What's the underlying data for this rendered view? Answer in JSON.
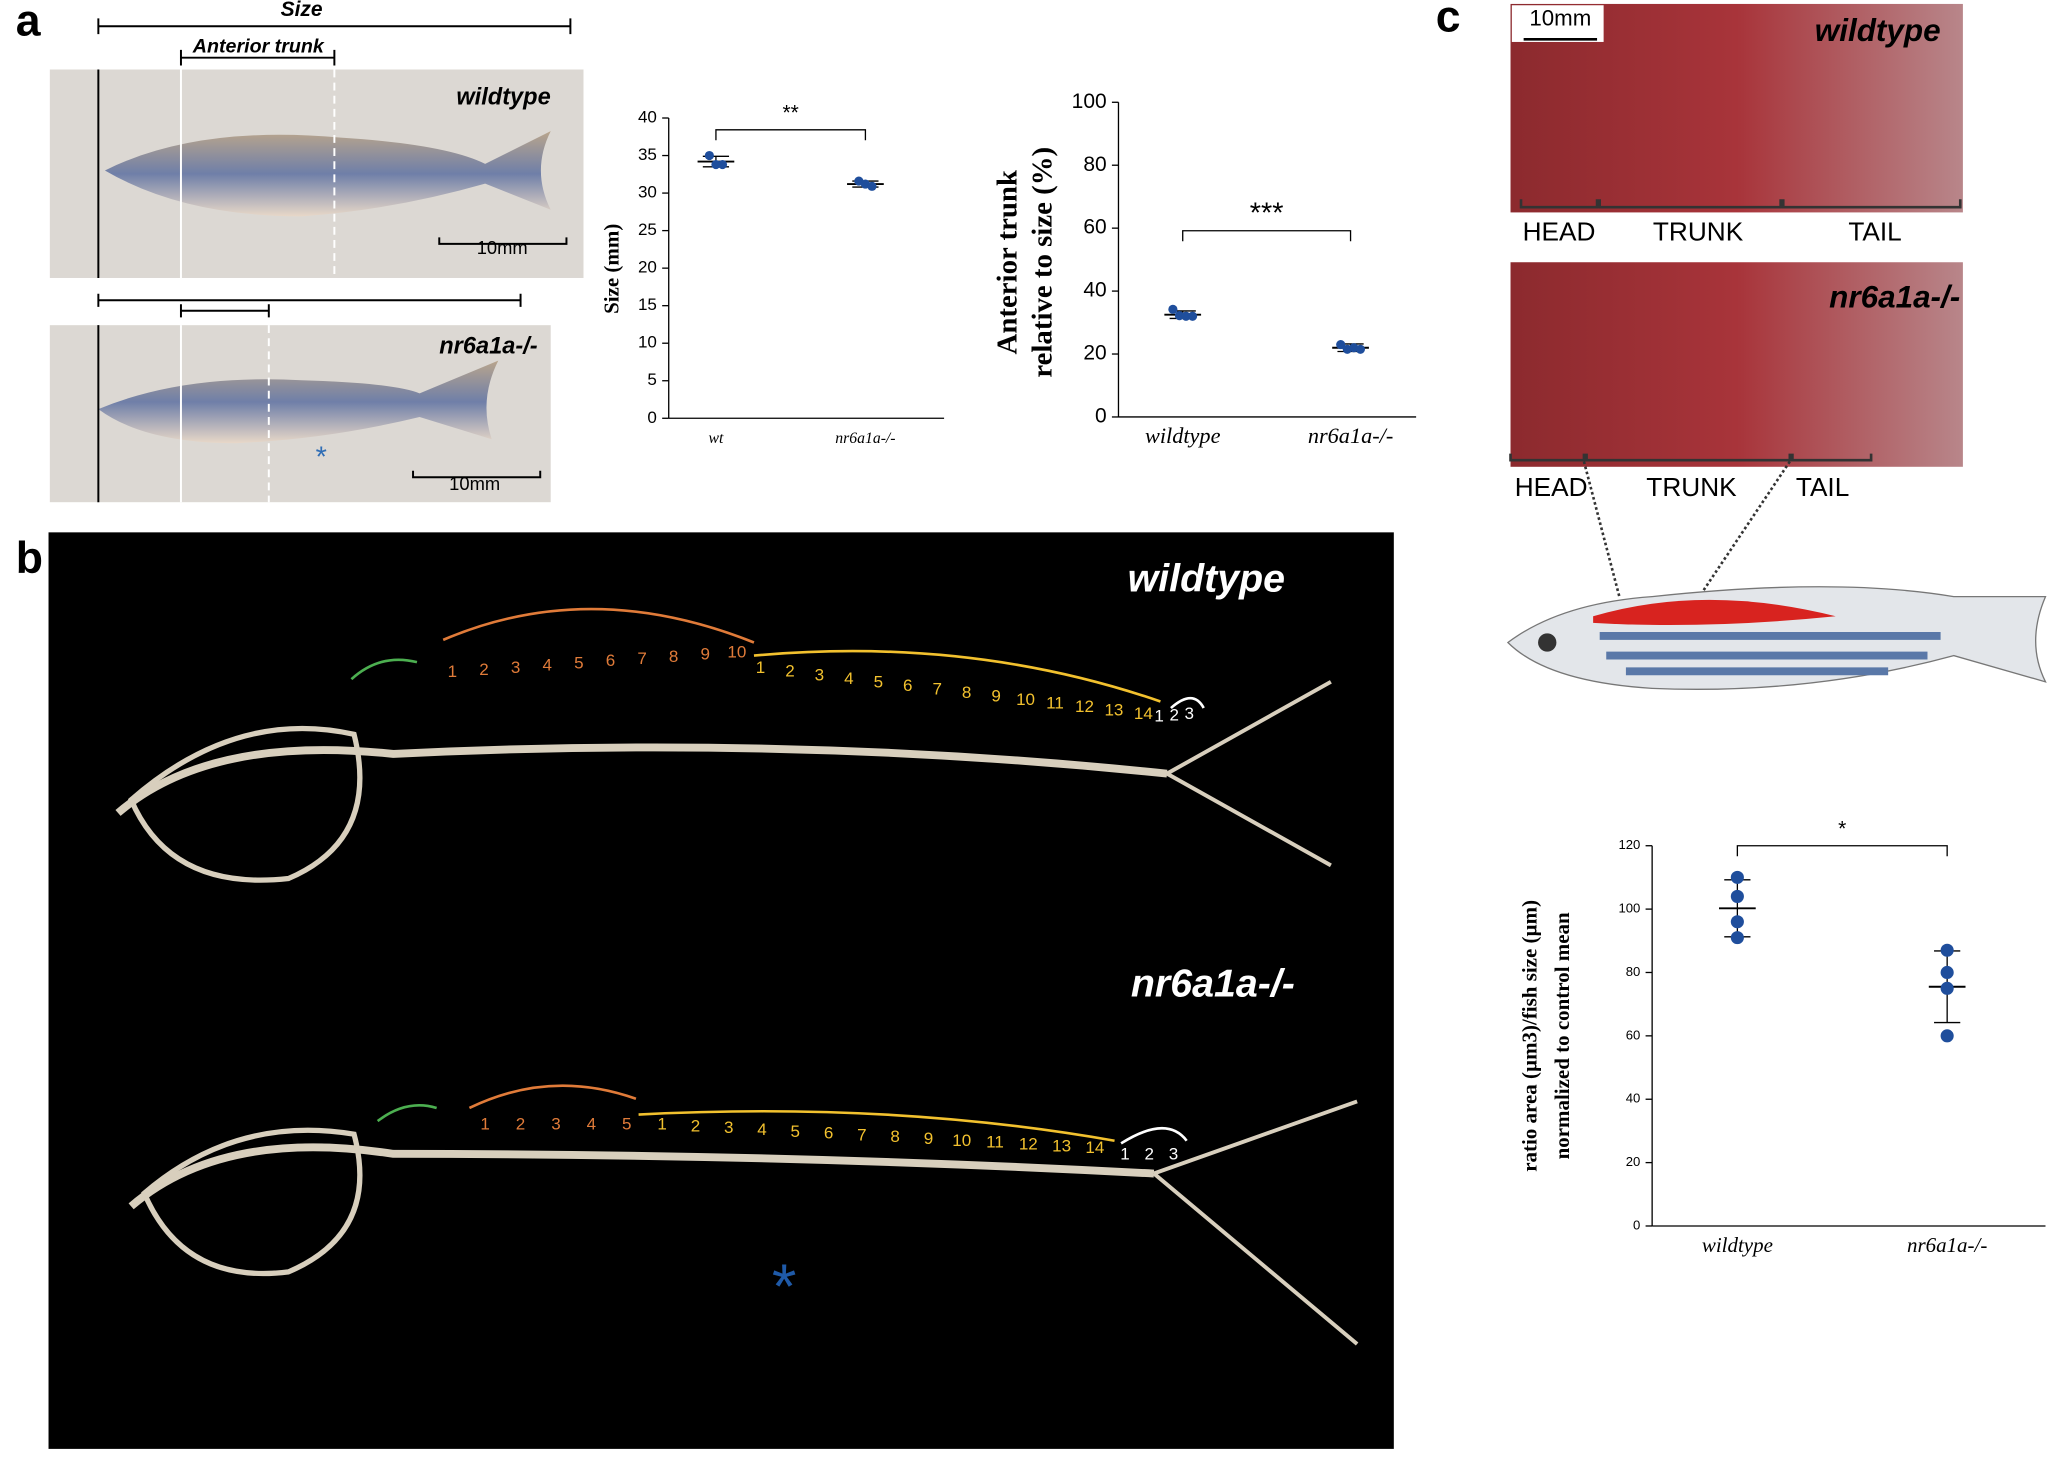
{
  "figure": {
    "panel_labels": [
      "a",
      "b",
      "c"
    ]
  },
  "panel_a": {
    "size": "Size",
    "anterior_trunk": "Anterior trunk",
    "genotypes": [
      "wildtype",
      "nr6a1a-/-"
    ],
    "scale_bars": [
      "10mm",
      "10mm"
    ],
    "asterisk": "*"
  },
  "panel_b": {
    "genotypes": [
      "wildtype",
      "nr6a1a-/-"
    ],
    "wildtype_vertebrae": {
      "anterior": [
        "1",
        "2",
        "3",
        "4",
        "5",
        "6",
        "7",
        "8",
        "9",
        "10"
      ],
      "posterior": [
        "1",
        "2",
        "3",
        "4",
        "5",
        "6",
        "7",
        "8",
        "9",
        "10",
        "11",
        "12",
        "13",
        "14"
      ],
      "caudal": [
        "1",
        "2",
        "3"
      ]
    },
    "mutant_vertebrae": {
      "anterior": [
        "1",
        "2",
        "3",
        "4",
        "5"
      ],
      "posterior": [
        "1",
        "2",
        "3",
        "4",
        "5",
        "6",
        "7",
        "8",
        "9",
        "10",
        "11",
        "12",
        "13",
        "14"
      ],
      "caudal": [
        "1",
        "2",
        "3"
      ]
    },
    "asterisk": "*"
  },
  "panel_c": {
    "scale_bar": "10mm",
    "genotypes": [
      "wildtype",
      "nr6a1a-/-"
    ],
    "regions_wildtype": [
      "HEAD",
      "TRUNK",
      "TAIL"
    ],
    "regions_mutant": [
      "HEAD",
      "TRUNK",
      "TAIL"
    ]
  },
  "chart_data": [
    {
      "type": "dot",
      "ylabel": "Size (mm)",
      "categories": [
        "wt",
        "nr6a1a-/-"
      ],
      "values": [
        [
          35.0,
          33.8,
          33.8
        ],
        [
          31.6,
          31.2,
          30.9
        ]
      ],
      "means": [
        34.2,
        31.2
      ],
      "errors": [
        0.7,
        0.4
      ],
      "ylim": [
        0,
        40
      ],
      "yticks": [
        0,
        5,
        10,
        15,
        20,
        25,
        30,
        35,
        40
      ],
      "significance": "**",
      "color": "#1f4e9c"
    },
    {
      "type": "dot",
      "ylabel": [
        "Anterior trunk",
        "relative to size (%)"
      ],
      "categories": [
        "wildtype",
        "nr6a1a-/-"
      ],
      "values": [
        [
          34.2,
          32.2,
          32.0,
          32.0
        ],
        [
          23.0,
          21.5,
          22.0,
          21.5
        ]
      ],
      "means": [
        32.5,
        22.0
      ],
      "errors": [
        1.2,
        1.2
      ],
      "ylim": [
        0,
        100
      ],
      "yticks": [
        0,
        20,
        40,
        60,
        80,
        100
      ],
      "significance": "***",
      "color": "#1f4e9c"
    },
    {
      "type": "dot",
      "ylabel": [
        "ratio area (µm3)/fish size (µm)",
        "normalized to control mean"
      ],
      "categories": [
        "wildtype",
        "nr6a1a-/-"
      ],
      "values": [
        [
          110,
          104,
          96,
          91
        ],
        [
          87,
          80,
          75,
          60
        ]
      ],
      "means": [
        100.25,
        75.5
      ],
      "errors": [
        9,
        11.3
      ],
      "ylim": [
        0,
        120
      ],
      "yticks": [
        0,
        20,
        40,
        60,
        80,
        100,
        120
      ],
      "significance": "*",
      "color": "#1f4e9c"
    }
  ]
}
